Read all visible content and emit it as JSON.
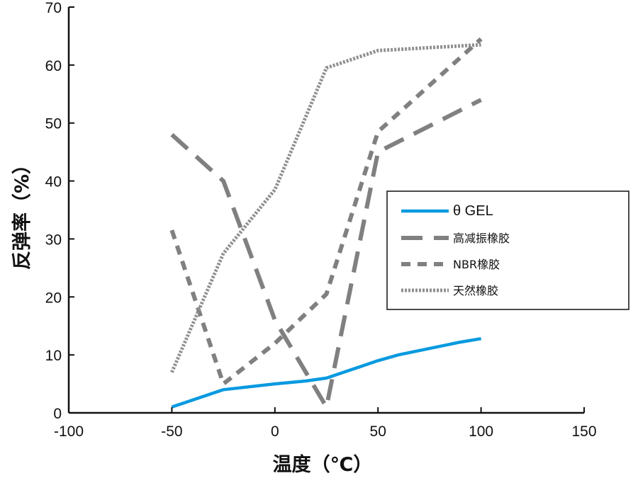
{
  "chart_data": {
    "type": "line",
    "xlabel": "温度（℃）",
    "ylabel": "反弹率（%）",
    "xlim": [
      -100,
      150
    ],
    "ylim": [
      0,
      70
    ],
    "xticks": [
      -100,
      -50,
      0,
      50,
      100,
      150
    ],
    "yticks": [
      0,
      10,
      20,
      30,
      40,
      50,
      60,
      70
    ],
    "grid": false,
    "legend_position": "right-middle",
    "series": [
      {
        "name": "θ GEL",
        "color": "#0a9ae0",
        "style": "solid",
        "x": [
          -50,
          -25,
          0,
          15,
          25,
          50,
          60,
          90,
          100
        ],
        "y": [
          1,
          4,
          5,
          5.5,
          6,
          9,
          10,
          12.2,
          12.8
        ]
      },
      {
        "name": "高减振橡胶",
        "color": "#808080",
        "style": "long-dash",
        "x": [
          -50,
          -25,
          0,
          25,
          50,
          100
        ],
        "y": [
          48,
          40,
          16,
          1,
          45,
          54
        ]
      },
      {
        "name": "NBR橡胶",
        "color": "#808080",
        "style": "short-dash",
        "x": [
          -50,
          -25,
          0,
          25,
          50,
          100
        ],
        "y": [
          31.5,
          5,
          12,
          20.5,
          48.5,
          64.5
        ]
      },
      {
        "name": "天然橡胶",
        "color": "#909090",
        "style": "dotted",
        "x": [
          -50,
          -25,
          0,
          25,
          50,
          100
        ],
        "y": [
          7,
          27.5,
          38.5,
          59.5,
          62.5,
          63.5
        ]
      }
    ]
  }
}
